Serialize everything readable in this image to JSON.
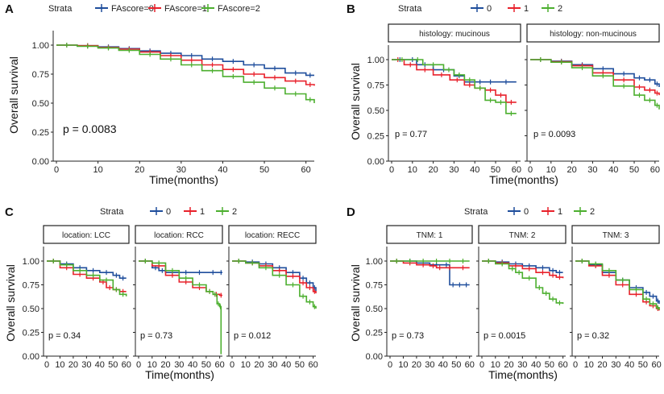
{
  "colors": {
    "stratum0": "#1f4e9c",
    "stratum1": "#e8212b",
    "stratum2": "#4caf2f",
    "axis": "#222222"
  },
  "chart_data": [
    {
      "id": "A",
      "type": "line",
      "subtype": "kaplan-meier",
      "panel_label": "A",
      "legend_title": "Strata",
      "legend_labels": [
        "FAscore=0",
        "FAscore=1",
        "FAscore=2"
      ],
      "xlabel": "Time(months)",
      "ylabel": "Overall survival",
      "xlim": [
        0,
        62
      ],
      "ylim": [
        0,
        1
      ],
      "xticks": [
        0,
        10,
        20,
        30,
        40,
        50,
        60
      ],
      "yticks": [
        0,
        0.25,
        0.5,
        0.75,
        1
      ],
      "ytick_labels": [
        "0.00",
        "0.25",
        "0.50",
        "0.75",
        "1.00"
      ],
      "facets": [
        {
          "strip": "",
          "pvalue": "p = 0.0083",
          "series": [
            {
              "name": "FAscore=0",
              "x": [
                0,
                5,
                10,
                15,
                20,
                25,
                30,
                35,
                40,
                45,
                50,
                55,
                60,
                62
              ],
              "y": [
                1,
                0.995,
                0.985,
                0.97,
                0.95,
                0.93,
                0.91,
                0.88,
                0.86,
                0.83,
                0.8,
                0.76,
                0.74,
                0.74
              ]
            },
            {
              "name": "FAscore=1",
              "x": [
                0,
                5,
                10,
                15,
                20,
                25,
                30,
                35,
                40,
                45,
                50,
                55,
                60,
                62
              ],
              "y": [
                1,
                0.995,
                0.98,
                0.965,
                0.94,
                0.91,
                0.87,
                0.83,
                0.79,
                0.75,
                0.72,
                0.69,
                0.66,
                0.65
              ]
            },
            {
              "name": "FAscore=2",
              "x": [
                0,
                5,
                10,
                15,
                20,
                25,
                30,
                35,
                40,
                45,
                50,
                55,
                60,
                62
              ],
              "y": [
                1,
                0.99,
                0.975,
                0.955,
                0.92,
                0.88,
                0.83,
                0.78,
                0.73,
                0.68,
                0.63,
                0.58,
                0.53,
                0.5
              ]
            }
          ]
        }
      ]
    },
    {
      "id": "B",
      "type": "line",
      "subtype": "kaplan-meier",
      "panel_label": "B",
      "legend_title": "Strata",
      "legend_labels": [
        "0",
        "1",
        "2"
      ],
      "xlabel": "Time(months)",
      "ylabel": "Overall survival",
      "xlim": [
        0,
        62
      ],
      "ylim": [
        0,
        1
      ],
      "xticks": [
        0,
        10,
        20,
        30,
        40,
        50,
        60
      ],
      "yticks": [
        0,
        0.25,
        0.5,
        0.75,
        1
      ],
      "ytick_labels": [
        "0.00",
        "0.25",
        "0.50",
        "0.75",
        "1.00"
      ],
      "facets": [
        {
          "strip": "histology: mucinous",
          "pvalue": "p = 0.77",
          "series": [
            {
              "name": "0",
              "x": [
                0,
                8,
                12,
                20,
                30,
                35,
                40,
                45,
                50,
                60
              ],
              "y": [
                1,
                1,
                0.95,
                0.9,
                0.84,
                0.78,
                0.78,
                0.78,
                0.78,
                0.78
              ]
            },
            {
              "name": "1",
              "x": [
                0,
                6,
                12,
                20,
                28,
                35,
                40,
                45,
                50,
                55,
                60
              ],
              "y": [
                1,
                0.95,
                0.9,
                0.85,
                0.8,
                0.75,
                0.72,
                0.7,
                0.65,
                0.58,
                0.58
              ]
            },
            {
              "name": "2",
              "x": [
                0,
                10,
                15,
                25,
                30,
                35,
                40,
                45,
                50,
                55,
                60
              ],
              "y": [
                1,
                1,
                0.95,
                0.9,
                0.85,
                0.8,
                0.72,
                0.6,
                0.58,
                0.47,
                0.47
              ]
            }
          ]
        },
        {
          "strip": "histology: non-mucinous",
          "pvalue": "p = 0.0093",
          "series": [
            {
              "name": "0",
              "x": [
                0,
                10,
                20,
                30,
                40,
                50,
                55,
                60,
                62
              ],
              "y": [
                1,
                0.985,
                0.95,
                0.91,
                0.86,
                0.82,
                0.8,
                0.76,
                0.73
              ]
            },
            {
              "name": "1",
              "x": [
                0,
                10,
                20,
                30,
                40,
                50,
                55,
                60,
                62
              ],
              "y": [
                1,
                0.98,
                0.94,
                0.87,
                0.8,
                0.73,
                0.7,
                0.67,
                0.65
              ]
            },
            {
              "name": "2",
              "x": [
                0,
                10,
                20,
                30,
                40,
                50,
                55,
                60,
                62
              ],
              "y": [
                1,
                0.975,
                0.92,
                0.84,
                0.74,
                0.65,
                0.6,
                0.55,
                0.51
              ]
            }
          ]
        }
      ]
    },
    {
      "id": "C",
      "type": "line",
      "subtype": "kaplan-meier",
      "panel_label": "C",
      "legend_title": "Strata",
      "legend_labels": [
        "0",
        "1",
        "2"
      ],
      "xlabel": "Time(months)",
      "ylabel": "Overall survival",
      "xlim": [
        0,
        62
      ],
      "ylim": [
        0,
        1
      ],
      "xticks": [
        0,
        10,
        20,
        30,
        40,
        50,
        60
      ],
      "yticks": [
        0,
        0.25,
        0.5,
        0.75,
        1
      ],
      "ytick_labels": [
        "0.00",
        "0.25",
        "0.50",
        "0.75",
        "1.00"
      ],
      "facets": [
        {
          "strip": "location: LCC",
          "pvalue": "p = 0.34",
          "series": [
            {
              "name": "0",
              "x": [
                0,
                10,
                20,
                30,
                40,
                50,
                55,
                60
              ],
              "y": [
                1,
                0.97,
                0.93,
                0.9,
                0.88,
                0.85,
                0.82,
                0.82
              ]
            },
            {
              "name": "1",
              "x": [
                0,
                10,
                20,
                30,
                40,
                45,
                50,
                55,
                60
              ],
              "y": [
                1,
                0.93,
                0.86,
                0.82,
                0.78,
                0.72,
                0.7,
                0.68,
                0.68
              ]
            },
            {
              "name": "2",
              "x": [
                0,
                10,
                20,
                30,
                40,
                50,
                55,
                60
              ],
              "y": [
                1,
                0.96,
                0.9,
                0.85,
                0.8,
                0.7,
                0.65,
                0.63
              ]
            }
          ]
        },
        {
          "strip": "location: RCC",
          "pvalue": "p = 0.73",
          "series": [
            {
              "name": "0",
              "x": [
                0,
                10,
                15,
                20,
                30,
                40,
                50,
                60,
                62
              ],
              "y": [
                1,
                0.93,
                0.9,
                0.88,
                0.88,
                0.88,
                0.88,
                0.88,
                0.88
              ]
            },
            {
              "name": "1",
              "x": [
                0,
                10,
                20,
                30,
                40,
                50,
                55,
                60,
                62
              ],
              "y": [
                1,
                0.95,
                0.85,
                0.78,
                0.72,
                0.68,
                0.65,
                0.64,
                0.64
              ]
            },
            {
              "name": "2",
              "x": [
                0,
                10,
                20,
                30,
                40,
                50,
                55,
                58,
                60,
                61
              ],
              "y": [
                1,
                0.98,
                0.9,
                0.82,
                0.75,
                0.68,
                0.65,
                0.55,
                0.52,
                0.02
              ]
            }
          ]
        },
        {
          "strip": "location: RECC",
          "pvalue": "p = 0.012",
          "series": [
            {
              "name": "0",
              "x": [
                0,
                10,
                20,
                30,
                40,
                50,
                55,
                60,
                62
              ],
              "y": [
                1,
                0.99,
                0.97,
                0.93,
                0.88,
                0.82,
                0.77,
                0.72,
                0.68
              ]
            },
            {
              "name": "1",
              "x": [
                0,
                10,
                20,
                30,
                40,
                50,
                55,
                60,
                62
              ],
              "y": [
                1,
                0.98,
                0.95,
                0.9,
                0.84,
                0.77,
                0.72,
                0.68,
                0.66
              ]
            },
            {
              "name": "2",
              "x": [
                0,
                10,
                20,
                30,
                40,
                50,
                55,
                60,
                62
              ],
              "y": [
                1,
                0.98,
                0.93,
                0.85,
                0.75,
                0.63,
                0.57,
                0.52,
                0.5
              ]
            }
          ]
        }
      ]
    },
    {
      "id": "D",
      "type": "line",
      "subtype": "kaplan-meier",
      "panel_label": "D",
      "legend_title": "Strata",
      "legend_labels": [
        "0",
        "1",
        "2"
      ],
      "xlabel": "Time(months)",
      "ylabel": "Overall survival",
      "xlim": [
        0,
        62
      ],
      "ylim": [
        0,
        1
      ],
      "xticks": [
        0,
        10,
        20,
        30,
        40,
        50,
        60
      ],
      "yticks": [
        0,
        0.25,
        0.5,
        0.75,
        1
      ],
      "ytick_labels": [
        "0.00",
        "0.25",
        "0.50",
        "0.75",
        "1.00"
      ],
      "facets": [
        {
          "strip": "TNM: 1",
          "pvalue": "p = 0.73",
          "series": [
            {
              "name": "0",
              "x": [
                0,
                10,
                20,
                30,
                40,
                45,
                50,
                55,
                60
              ],
              "y": [
                1,
                1,
                0.98,
                0.96,
                0.96,
                0.75,
                0.75,
                0.75,
                0.75
              ]
            },
            {
              "name": "1",
              "x": [
                0,
                10,
                20,
                30,
                35,
                40,
                50,
                60
              ],
              "y": [
                1,
                0.98,
                0.96,
                0.95,
                0.93,
                0.93,
                0.93,
                0.93
              ]
            },
            {
              "name": "2",
              "x": [
                0,
                10,
                20,
                30,
                40,
                50,
                60
              ],
              "y": [
                1,
                1,
                1,
                1,
                1,
                1,
                1
              ]
            }
          ]
        },
        {
          "strip": "TNM: 2",
          "pvalue": "p = 0.0015",
          "series": [
            {
              "name": "0",
              "x": [
                0,
                10,
                20,
                30,
                40,
                50,
                55,
                60
              ],
              "y": [
                1,
                0.99,
                0.97,
                0.95,
                0.93,
                0.9,
                0.88,
                0.88
              ]
            },
            {
              "name": "1",
              "x": [
                0,
                10,
                20,
                30,
                40,
                50,
                55,
                60
              ],
              "y": [
                1,
                0.98,
                0.95,
                0.92,
                0.88,
                0.85,
                0.83,
                0.82
              ]
            },
            {
              "name": "2",
              "x": [
                0,
                10,
                20,
                25,
                30,
                40,
                45,
                50,
                55,
                60
              ],
              "y": [
                1,
                0.97,
                0.92,
                0.88,
                0.82,
                0.72,
                0.66,
                0.6,
                0.56,
                0.55
              ]
            }
          ]
        },
        {
          "strip": "TNM: 3",
          "pvalue": "p = 0.32",
          "series": [
            {
              "name": "0",
              "x": [
                0,
                10,
                20,
                30,
                40,
                50,
                55,
                60,
                62
              ],
              "y": [
                1,
                0.96,
                0.88,
                0.8,
                0.72,
                0.67,
                0.63,
                0.58,
                0.55
              ]
            },
            {
              "name": "1",
              "x": [
                0,
                10,
                20,
                30,
                40,
                50,
                55,
                60,
                62
              ],
              "y": [
                1,
                0.95,
                0.85,
                0.75,
                0.65,
                0.57,
                0.53,
                0.5,
                0.48
              ]
            },
            {
              "name": "2",
              "x": [
                0,
                10,
                20,
                30,
                40,
                50,
                55,
                60,
                62
              ],
              "y": [
                1,
                0.97,
                0.9,
                0.8,
                0.7,
                0.6,
                0.55,
                0.51,
                0.49
              ]
            }
          ]
        }
      ]
    }
  ]
}
